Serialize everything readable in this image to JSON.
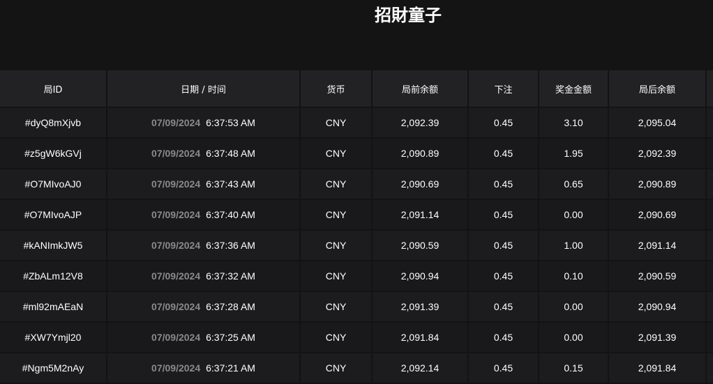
{
  "title": "招財童子",
  "columns": [
    "局ID",
    "日期 / 时间",
    "货币",
    "局前余额",
    "下注",
    "奖金金额",
    "局后余额",
    ""
  ],
  "rows": [
    {
      "id": "#dyQ8mXjvb",
      "date": "07/09/2024",
      "time": "6:37:53 AM",
      "currency": "CNY",
      "before": "2,092.39",
      "bet": "0.45",
      "win": "3.10",
      "after": "2,095.04"
    },
    {
      "id": "#z5gW6kGVj",
      "date": "07/09/2024",
      "time": "6:37:48 AM",
      "currency": "CNY",
      "before": "2,090.89",
      "bet": "0.45",
      "win": "1.95",
      "after": "2,092.39"
    },
    {
      "id": "#O7MIvoAJ0",
      "date": "07/09/2024",
      "time": "6:37:43 AM",
      "currency": "CNY",
      "before": "2,090.69",
      "bet": "0.45",
      "win": "0.65",
      "after": "2,090.89"
    },
    {
      "id": "#O7MIvoAJP",
      "date": "07/09/2024",
      "time": "6:37:40 AM",
      "currency": "CNY",
      "before": "2,091.14",
      "bet": "0.45",
      "win": "0.00",
      "after": "2,090.69"
    },
    {
      "id": "#kANImkJW5",
      "date": "07/09/2024",
      "time": "6:37:36 AM",
      "currency": "CNY",
      "before": "2,090.59",
      "bet": "0.45",
      "win": "1.00",
      "after": "2,091.14"
    },
    {
      "id": "#ZbALm12V8",
      "date": "07/09/2024",
      "time": "6:37:32 AM",
      "currency": "CNY",
      "before": "2,090.94",
      "bet": "0.45",
      "win": "0.10",
      "after": "2,090.59"
    },
    {
      "id": "#ml92mAEaN",
      "date": "07/09/2024",
      "time": "6:37:28 AM",
      "currency": "CNY",
      "before": "2,091.39",
      "bet": "0.45",
      "win": "0.00",
      "after": "2,090.94"
    },
    {
      "id": "#XW7Ymjl20",
      "date": "07/09/2024",
      "time": "6:37:25 AM",
      "currency": "CNY",
      "before": "2,091.84",
      "bet": "0.45",
      "win": "0.00",
      "after": "2,091.39"
    },
    {
      "id": "#Ngm5M2nAy",
      "date": "07/09/2024",
      "time": "6:37:21 AM",
      "currency": "CNY",
      "before": "2,092.14",
      "bet": "0.45",
      "win": "0.15",
      "after": "2,091.84"
    }
  ]
}
